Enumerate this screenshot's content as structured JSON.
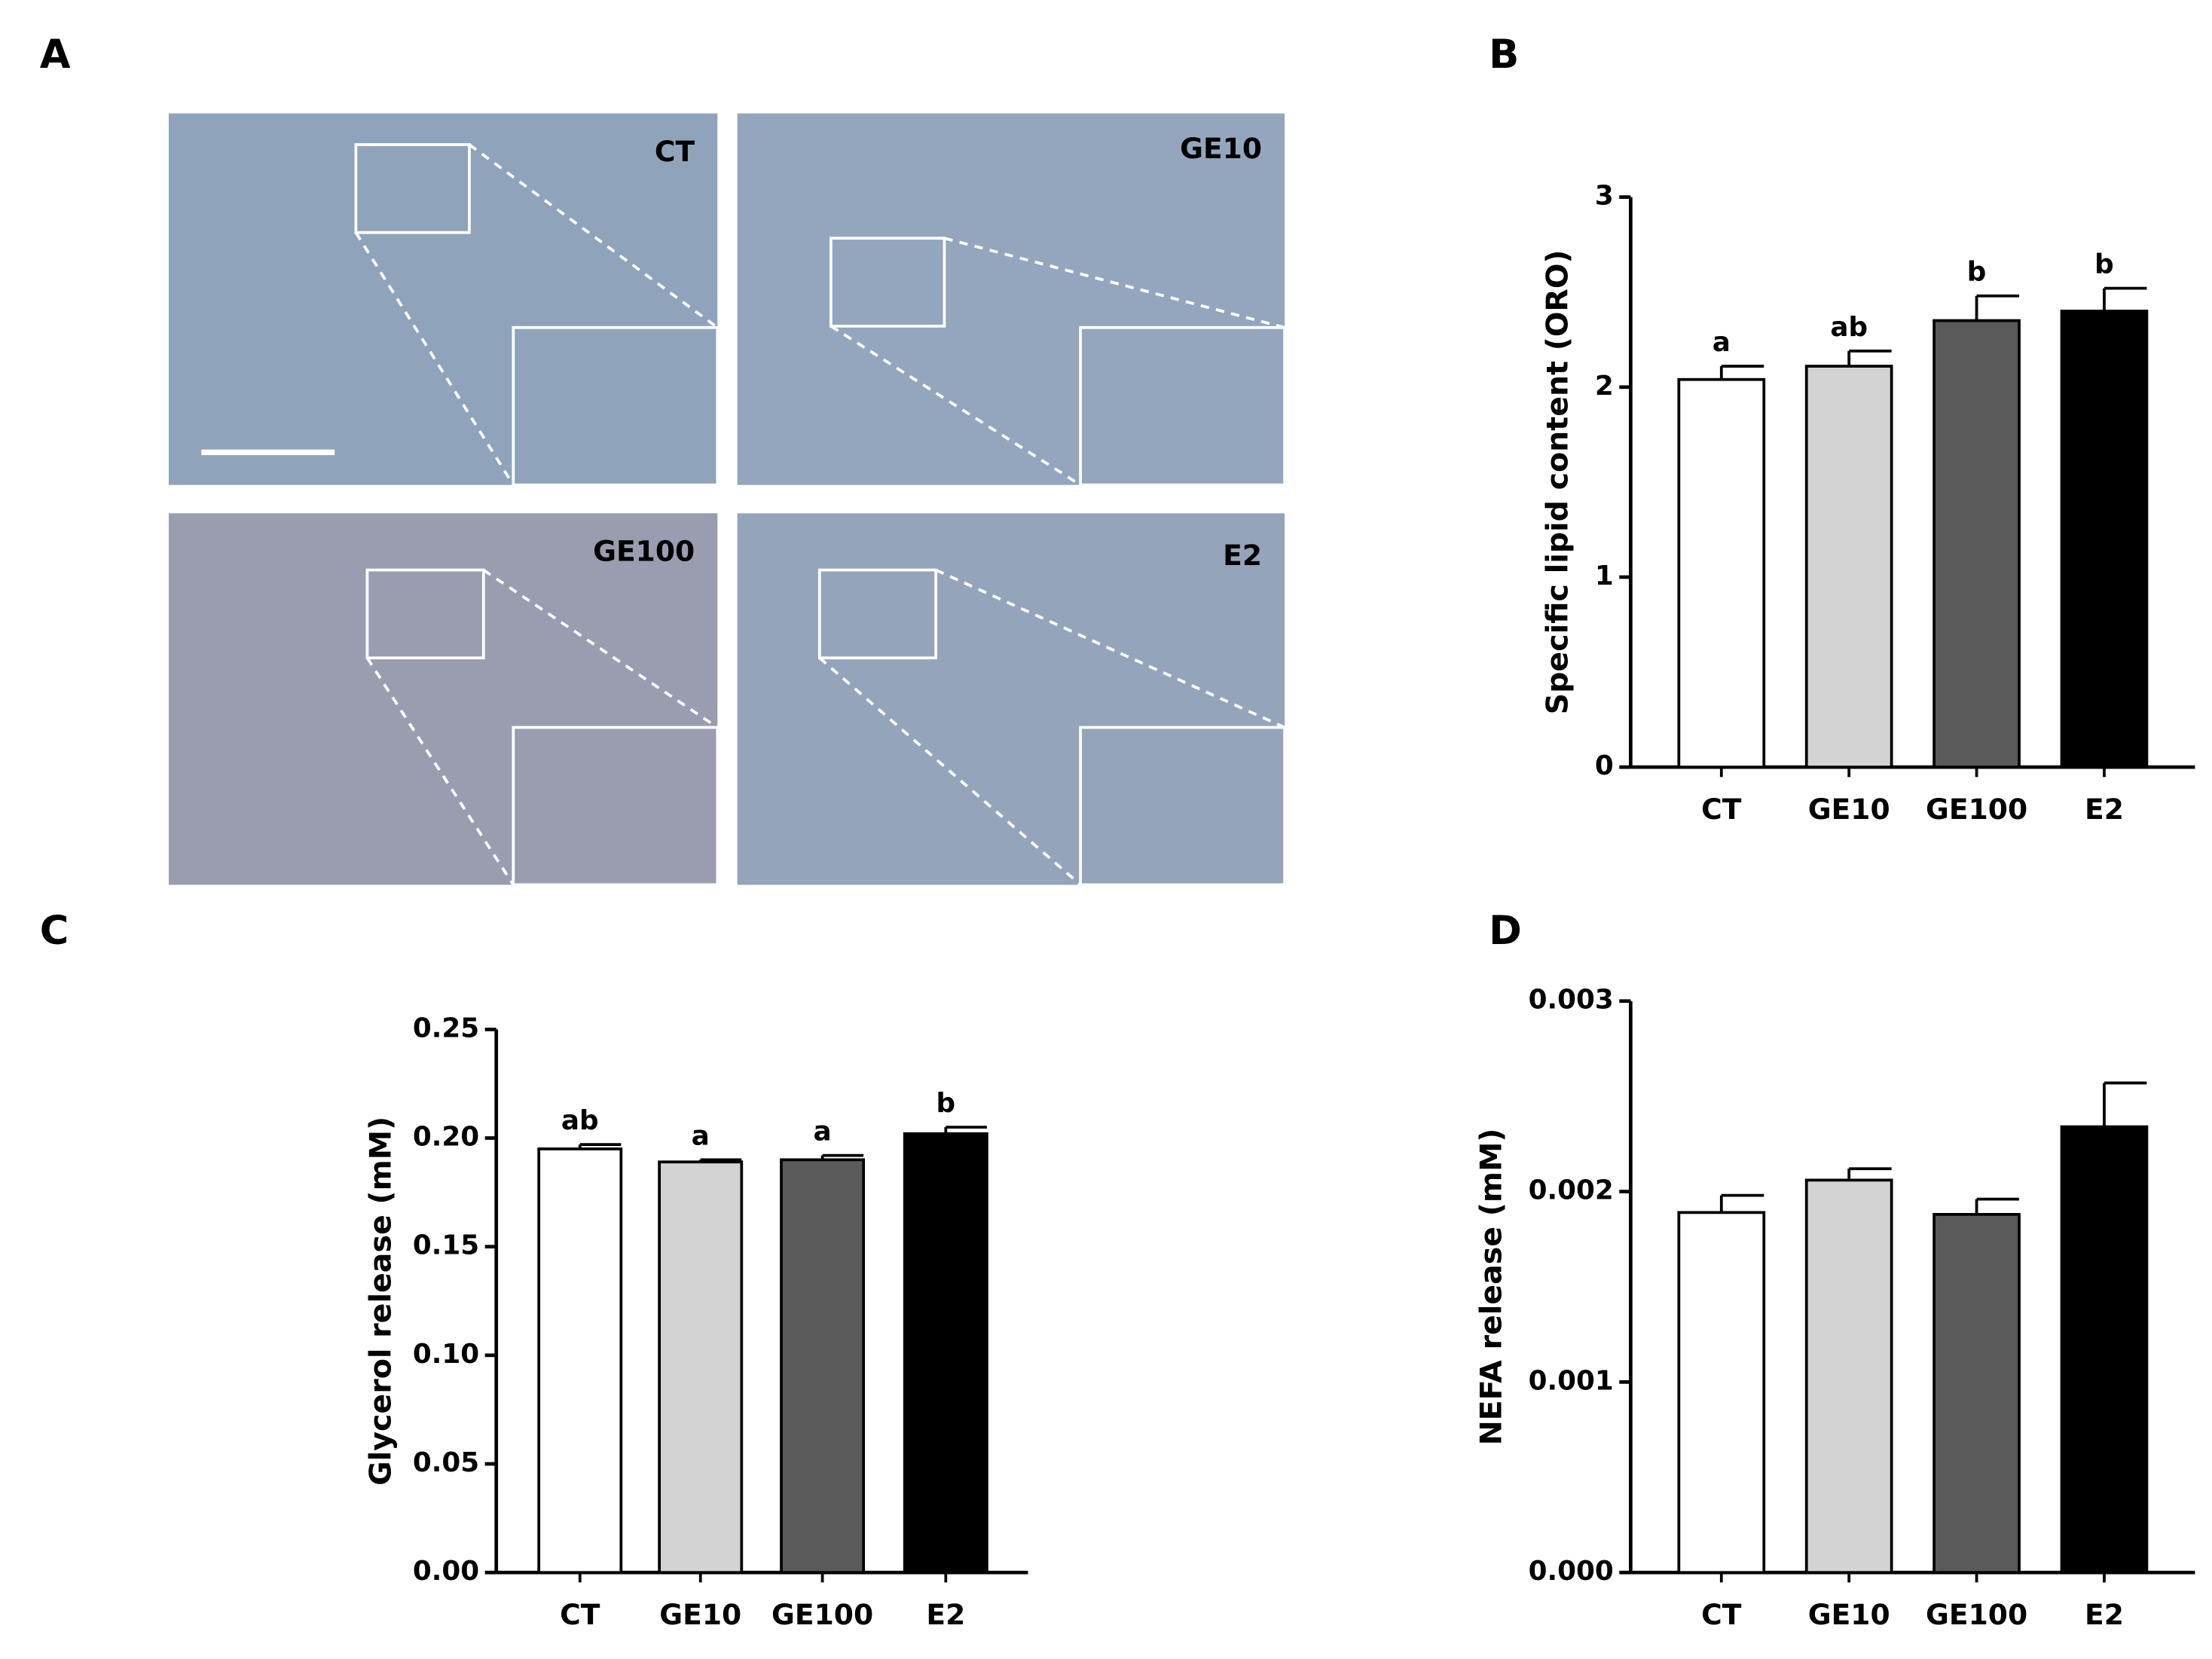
{
  "panel_labels": [
    "A",
    "B",
    "C",
    "D"
  ],
  "micrographs": [
    "CT",
    "GE10",
    "GE100",
    "E2"
  ],
  "chart_data": [
    {
      "type": "bar",
      "y_label": "Specific lipid content (ORO)",
      "categories": [
        "CT",
        "GE10",
        "GE100",
        "E2"
      ],
      "values": [
        2.04,
        2.11,
        2.35,
        2.4
      ],
      "errors": [
        0.07,
        0.08,
        0.13,
        0.12
      ],
      "annotations": [
        "a",
        "ab",
        "b",
        "b"
      ],
      "colors": [
        "#ffffff",
        "#d3d3d3",
        "#5a5a5a",
        "#000000"
      ],
      "ylim": [
        0,
        3
      ],
      "yticks": [
        0,
        1,
        2,
        3
      ]
    },
    {
      "type": "bar",
      "y_label": "Glycerol release (mM)",
      "categories": [
        "CT",
        "GE10",
        "GE100",
        "E2"
      ],
      "values": [
        0.195,
        0.189,
        0.19,
        0.202
      ],
      "errors": [
        0.002,
        0.001,
        0.002,
        0.003
      ],
      "annotations": [
        "ab",
        "a",
        "a",
        "b"
      ],
      "colors": [
        "#ffffff",
        "#d3d3d3",
        "#5a5a5a",
        "#000000"
      ],
      "ylim": [
        0,
        0.25
      ],
      "yticks": [
        {
          "value": 0,
          "label": "0.00"
        },
        0.05,
        {
          "value": 0.1,
          "label": "0.10"
        },
        0.15,
        {
          "value": 0.2,
          "label": "0.20"
        },
        0.25
      ]
    },
    {
      "type": "bar",
      "y_label": "NEFA release (mM)",
      "categories": [
        "CT",
        "GE10",
        "GE100",
        "E2"
      ],
      "values": [
        0.00189,
        0.00206,
        0.00188,
        0.00234
      ],
      "errors": [
        9e-05,
        6e-05,
        8e-05,
        0.00023
      ],
      "colors": [
        "#ffffff",
        "#d3d3d3",
        "#5a5a5a",
        "#000000"
      ],
      "ylim": [
        0,
        0.003
      ],
      "yticks": [
        {
          "value": 0,
          "label": "0.000"
        },
        {
          "value": 0.001,
          "label": "0.001"
        },
        {
          "value": 0.002,
          "label": "0.002"
        },
        {
          "value": 0.003,
          "label": "0.003"
        }
      ]
    }
  ]
}
